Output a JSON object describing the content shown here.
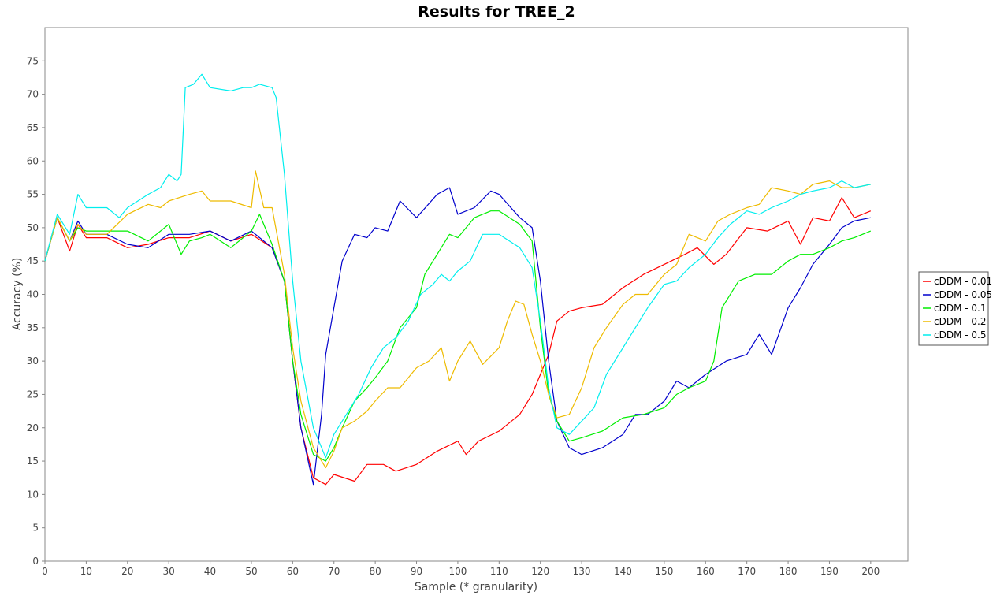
{
  "chart_data": {
    "type": "line",
    "title": "Results for TREE_2",
    "xlabel": "Sample (* granularity)",
    "ylabel": "Accuracy (%)",
    "xlim": [
      0,
      209
    ],
    "ylim": [
      0,
      80
    ],
    "x_ticks": [
      0,
      10,
      20,
      30,
      40,
      50,
      60,
      70,
      80,
      90,
      100,
      110,
      120,
      130,
      140,
      150,
      160,
      170,
      180,
      190,
      200
    ],
    "y_ticks": [
      0,
      5,
      10,
      15,
      20,
      25,
      30,
      35,
      40,
      45,
      50,
      55,
      60,
      65,
      70,
      75
    ],
    "grid": false,
    "legend_position": "right",
    "series": [
      {
        "name": "cDDM - 0.01",
        "color": "#ff0000",
        "points": [
          [
            0,
            45
          ],
          [
            3,
            51.5
          ],
          [
            6,
            46.5
          ],
          [
            8,
            50.5
          ],
          [
            10,
            48.5
          ],
          [
            15,
            48.5
          ],
          [
            20,
            47
          ],
          [
            25,
            47.5
          ],
          [
            30,
            48.5
          ],
          [
            35,
            48.5
          ],
          [
            40,
            49.5
          ],
          [
            45,
            48
          ],
          [
            50,
            49
          ],
          [
            55,
            47
          ],
          [
            58,
            42
          ],
          [
            60,
            30
          ],
          [
            62,
            20
          ],
          [
            65,
            12.5
          ],
          [
            68,
            11.5
          ],
          [
            70,
            13
          ],
          [
            75,
            12
          ],
          [
            78,
            14.5
          ],
          [
            82,
            14.5
          ],
          [
            85,
            13.5
          ],
          [
            90,
            14.5
          ],
          [
            95,
            16.5
          ],
          [
            100,
            18
          ],
          [
            102,
            16
          ],
          [
            105,
            18
          ],
          [
            110,
            19.5
          ],
          [
            115,
            22
          ],
          [
            118,
            25
          ],
          [
            120,
            28
          ],
          [
            122,
            31
          ],
          [
            124,
            36
          ],
          [
            127,
            37.5
          ],
          [
            130,
            38
          ],
          [
            135,
            38.5
          ],
          [
            140,
            41
          ],
          [
            145,
            43
          ],
          [
            150,
            44.5
          ],
          [
            155,
            46
          ],
          [
            158,
            47
          ],
          [
            162,
            44.5
          ],
          [
            165,
            46
          ],
          [
            170,
            50
          ],
          [
            175,
            49.5
          ],
          [
            180,
            51
          ],
          [
            183,
            47.5
          ],
          [
            186,
            51.5
          ],
          [
            190,
            51
          ],
          [
            193,
            54.5
          ],
          [
            196,
            51.5
          ],
          [
            200,
            52.5
          ]
        ]
      },
      {
        "name": "cDDM - 0.05",
        "color": "#0000cc",
        "points": [
          [
            0,
            45
          ],
          [
            3,
            51.5
          ],
          [
            6,
            48
          ],
          [
            8,
            51
          ],
          [
            10,
            49
          ],
          [
            15,
            49
          ],
          [
            20,
            47.5
          ],
          [
            25,
            47
          ],
          [
            30,
            49
          ],
          [
            35,
            49
          ],
          [
            40,
            49.5
          ],
          [
            45,
            48
          ],
          [
            50,
            49.5
          ],
          [
            55,
            47
          ],
          [
            58,
            42
          ],
          [
            60,
            30
          ],
          [
            62,
            20
          ],
          [
            65,
            11.5
          ],
          [
            67,
            22
          ],
          [
            68,
            31
          ],
          [
            70,
            38
          ],
          [
            72,
            45
          ],
          [
            75,
            49
          ],
          [
            78,
            48.5
          ],
          [
            80,
            50
          ],
          [
            83,
            49.5
          ],
          [
            86,
            54
          ],
          [
            90,
            51.5
          ],
          [
            95,
            55
          ],
          [
            98,
            56
          ],
          [
            100,
            52
          ],
          [
            104,
            53
          ],
          [
            108,
            55.5
          ],
          [
            110,
            55
          ],
          [
            115,
            51.5
          ],
          [
            118,
            50
          ],
          [
            120,
            42
          ],
          [
            122,
            30
          ],
          [
            124,
            21
          ],
          [
            127,
            17
          ],
          [
            130,
            16
          ],
          [
            135,
            17
          ],
          [
            140,
            19
          ],
          [
            143,
            22
          ],
          [
            146,
            22
          ],
          [
            150,
            24
          ],
          [
            153,
            27
          ],
          [
            156,
            26
          ],
          [
            160,
            28
          ],
          [
            165,
            30
          ],
          [
            170,
            31
          ],
          [
            173,
            34
          ],
          [
            176,
            31
          ],
          [
            180,
            38
          ],
          [
            183,
            41
          ],
          [
            186,
            44.5
          ],
          [
            190,
            47.5
          ],
          [
            193,
            50
          ],
          [
            196,
            51
          ],
          [
            200,
            51.5
          ]
        ]
      },
      {
        "name": "cDDM - 0.1",
        "color": "#00ee00",
        "points": [
          [
            0,
            45
          ],
          [
            3,
            51.5
          ],
          [
            6,
            48
          ],
          [
            8,
            50
          ],
          [
            10,
            49.5
          ],
          [
            15,
            49.5
          ],
          [
            20,
            49.5
          ],
          [
            25,
            48
          ],
          [
            30,
            50.5
          ],
          [
            33,
            46
          ],
          [
            35,
            48
          ],
          [
            38,
            48.5
          ],
          [
            40,
            49
          ],
          [
            45,
            47
          ],
          [
            50,
            49.5
          ],
          [
            52,
            52
          ],
          [
            55,
            47.5
          ],
          [
            58,
            42
          ],
          [
            60,
            30
          ],
          [
            62,
            22
          ],
          [
            65,
            16
          ],
          [
            68,
            15
          ],
          [
            70,
            17
          ],
          [
            72,
            20
          ],
          [
            75,
            24
          ],
          [
            78,
            26
          ],
          [
            80,
            27.5
          ],
          [
            83,
            30
          ],
          [
            86,
            35
          ],
          [
            90,
            38
          ],
          [
            92,
            43
          ],
          [
            95,
            46
          ],
          [
            98,
            49
          ],
          [
            100,
            48.5
          ],
          [
            104,
            51.5
          ],
          [
            108,
            52.5
          ],
          [
            110,
            52.5
          ],
          [
            115,
            50.5
          ],
          [
            118,
            48
          ],
          [
            120,
            35
          ],
          [
            122,
            25
          ],
          [
            124,
            21
          ],
          [
            127,
            18
          ],
          [
            130,
            18.5
          ],
          [
            135,
            19.5
          ],
          [
            140,
            21.5
          ],
          [
            145,
            22
          ],
          [
            150,
            23
          ],
          [
            153,
            25
          ],
          [
            156,
            26
          ],
          [
            160,
            27
          ],
          [
            162,
            30
          ],
          [
            164,
            38
          ],
          [
            168,
            42
          ],
          [
            172,
            43
          ],
          [
            176,
            43
          ],
          [
            180,
            45
          ],
          [
            183,
            46
          ],
          [
            186,
            46
          ],
          [
            190,
            47
          ],
          [
            193,
            48
          ],
          [
            196,
            48.5
          ],
          [
            200,
            49.5
          ]
        ]
      },
      {
        "name": "cDDM - 0.2",
        "color": "#eebb00",
        "points": [
          [
            0,
            45
          ],
          [
            3,
            51.5
          ],
          [
            6,
            48
          ],
          [
            8,
            50.5
          ],
          [
            10,
            49
          ],
          [
            15,
            49
          ],
          [
            20,
            52
          ],
          [
            25,
            53.5
          ],
          [
            28,
            53
          ],
          [
            30,
            54
          ],
          [
            35,
            55
          ],
          [
            38,
            55.5
          ],
          [
            40,
            54
          ],
          [
            45,
            54
          ],
          [
            50,
            53
          ],
          [
            51,
            58.5
          ],
          [
            53,
            53
          ],
          [
            55,
            53
          ],
          [
            58,
            43
          ],
          [
            60,
            32
          ],
          [
            62,
            24
          ],
          [
            65,
            17
          ],
          [
            68,
            14
          ],
          [
            70,
            16.5
          ],
          [
            72,
            20
          ],
          [
            75,
            21
          ],
          [
            78,
            22.5
          ],
          [
            80,
            24
          ],
          [
            83,
            26
          ],
          [
            86,
            26
          ],
          [
            90,
            29
          ],
          [
            93,
            30
          ],
          [
            96,
            32
          ],
          [
            98,
            27
          ],
          [
            100,
            30
          ],
          [
            103,
            33
          ],
          [
            106,
            29.5
          ],
          [
            110,
            32
          ],
          [
            112,
            36
          ],
          [
            114,
            39
          ],
          [
            116,
            38.5
          ],
          [
            118,
            34
          ],
          [
            120,
            30
          ],
          [
            122,
            25
          ],
          [
            124,
            21.5
          ],
          [
            127,
            22
          ],
          [
            130,
            26
          ],
          [
            133,
            32
          ],
          [
            136,
            35
          ],
          [
            140,
            38.5
          ],
          [
            143,
            40
          ],
          [
            146,
            40
          ],
          [
            150,
            43
          ],
          [
            153,
            44.5
          ],
          [
            156,
            49
          ],
          [
            160,
            48
          ],
          [
            163,
            51
          ],
          [
            166,
            52
          ],
          [
            170,
            53
          ],
          [
            173,
            53.5
          ],
          [
            176,
            56
          ],
          [
            180,
            55.5
          ],
          [
            183,
            55
          ],
          [
            186,
            56.5
          ],
          [
            190,
            57
          ],
          [
            193,
            56
          ],
          [
            196,
            56
          ],
          [
            200,
            56.5
          ]
        ]
      },
      {
        "name": "cDDM - 0.5",
        "color": "#00eeee",
        "points": [
          [
            0,
            45
          ],
          [
            3,
            52
          ],
          [
            6,
            49
          ],
          [
            8,
            55
          ],
          [
            10,
            53
          ],
          [
            15,
            53
          ],
          [
            18,
            51.5
          ],
          [
            20,
            53
          ],
          [
            25,
            55
          ],
          [
            28,
            56
          ],
          [
            30,
            58
          ],
          [
            32,
            57
          ],
          [
            33,
            58
          ],
          [
            34,
            71
          ],
          [
            36,
            71.5
          ],
          [
            38,
            73
          ],
          [
            40,
            71
          ],
          [
            45,
            70.5
          ],
          [
            48,
            71
          ],
          [
            50,
            71
          ],
          [
            52,
            71.5
          ],
          [
            55,
            71
          ],
          [
            56,
            69.5
          ],
          [
            58,
            58
          ],
          [
            60,
            42
          ],
          [
            62,
            30
          ],
          [
            65,
            20
          ],
          [
            68,
            15.5
          ],
          [
            70,
            19
          ],
          [
            73,
            22
          ],
          [
            76,
            25
          ],
          [
            79,
            29
          ],
          [
            82,
            32
          ],
          [
            85,
            33.5
          ],
          [
            88,
            36
          ],
          [
            91,
            40
          ],
          [
            94,
            41.5
          ],
          [
            96,
            43
          ],
          [
            98,
            42
          ],
          [
            100,
            43.5
          ],
          [
            103,
            45
          ],
          [
            106,
            49
          ],
          [
            110,
            49
          ],
          [
            115,
            47
          ],
          [
            118,
            44
          ],
          [
            120,
            36
          ],
          [
            122,
            26
          ],
          [
            124,
            20
          ],
          [
            127,
            19
          ],
          [
            130,
            21
          ],
          [
            133,
            23
          ],
          [
            136,
            28
          ],
          [
            140,
            32
          ],
          [
            143,
            35
          ],
          [
            146,
            38
          ],
          [
            150,
            41.5
          ],
          [
            153,
            42
          ],
          [
            156,
            44
          ],
          [
            160,
            46
          ],
          [
            163,
            48.5
          ],
          [
            166,
            50.5
          ],
          [
            170,
            52.5
          ],
          [
            173,
            52
          ],
          [
            176,
            53
          ],
          [
            180,
            54
          ],
          [
            183,
            55
          ],
          [
            186,
            55.5
          ],
          [
            190,
            56
          ],
          [
            193,
            57
          ],
          [
            196,
            56
          ],
          [
            200,
            56.5
          ]
        ]
      }
    ]
  }
}
